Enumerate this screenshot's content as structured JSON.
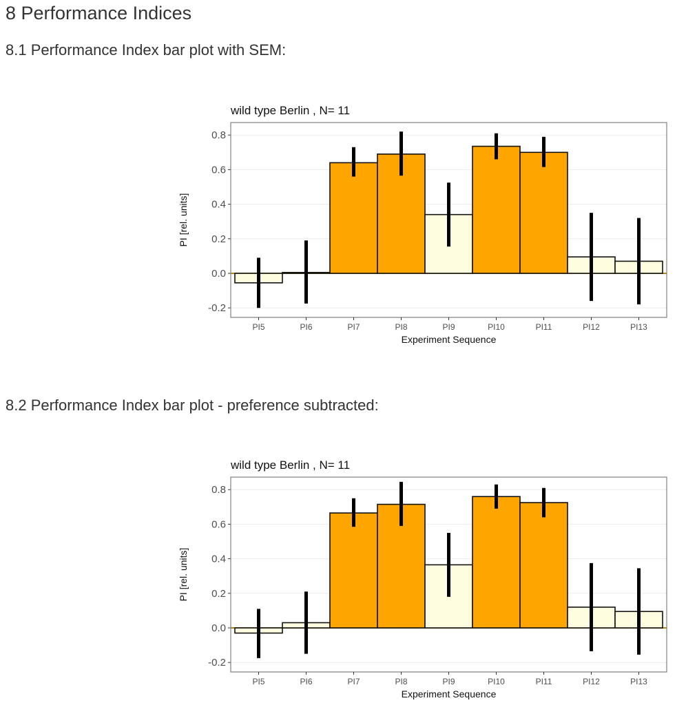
{
  "heading": "8 Performance Indices",
  "sections": [
    {
      "title": "8.1 Performance Index bar plot with SEM:"
    },
    {
      "title": "8.2 Performance Index bar plot - preference subtracted:"
    }
  ],
  "colors": {
    "training": "#FFA500",
    "test": "#FFFDE0",
    "zero_line": "#B8860B",
    "grid": "#EBEBEB",
    "panel_border": "#7F7F7F",
    "errorbar": "#000000"
  },
  "chart_data": [
    {
      "type": "bar",
      "title": "wild type Berlin , N= 11",
      "xlabel": "Experiment Sequence",
      "ylabel": "PI [rel. units]",
      "ylim": [
        -0.24,
        0.87
      ],
      "yticks": [
        -0.2,
        0.0,
        0.2,
        0.4,
        0.6,
        0.8
      ],
      "ytick_labels": [
        "-0.2",
        "0.0",
        "0.2",
        "0.4",
        "0.6",
        "0.8"
      ],
      "grid": true,
      "categories": [
        "PI5",
        "PI6",
        "PI7",
        "PI8",
        "PI9",
        "PI10",
        "PI11",
        "PI12",
        "PI13"
      ],
      "values": [
        -0.055,
        0.005,
        0.64,
        0.69,
        0.34,
        0.735,
        0.7,
        0.095,
        0.07
      ],
      "err_low": [
        -0.2,
        -0.175,
        0.56,
        0.565,
        0.155,
        0.66,
        0.615,
        -0.16,
        -0.18
      ],
      "err_high": [
        0.09,
        0.19,
        0.73,
        0.82,
        0.525,
        0.81,
        0.79,
        0.35,
        0.32
      ],
      "fill": [
        "test",
        "test",
        "training",
        "training",
        "test",
        "training",
        "training",
        "test",
        "test"
      ]
    },
    {
      "type": "bar",
      "title": "wild type Berlin , N= 11",
      "xlabel": "Experiment Sequence",
      "ylabel": "PI [rel. units]",
      "ylim": [
        -0.24,
        0.87
      ],
      "yticks": [
        -0.2,
        0.0,
        0.2,
        0.4,
        0.6,
        0.8
      ],
      "ytick_labels": [
        "-0.2",
        "0.0",
        "0.2",
        "0.4",
        "0.6",
        "0.8"
      ],
      "grid": true,
      "categories": [
        "PI5",
        "PI6",
        "PI7",
        "PI8",
        "PI9",
        "PI10",
        "PI11",
        "PI12",
        "PI13"
      ],
      "values": [
        -0.03,
        0.03,
        0.665,
        0.715,
        0.365,
        0.76,
        0.725,
        0.12,
        0.095
      ],
      "err_low": [
        -0.175,
        -0.15,
        0.585,
        0.59,
        0.18,
        0.69,
        0.64,
        -0.135,
        -0.155
      ],
      "err_high": [
        0.11,
        0.21,
        0.75,
        0.845,
        0.55,
        0.83,
        0.81,
        0.375,
        0.345
      ],
      "fill": [
        "test",
        "test",
        "training",
        "training",
        "test",
        "training",
        "training",
        "test",
        "test"
      ]
    }
  ]
}
